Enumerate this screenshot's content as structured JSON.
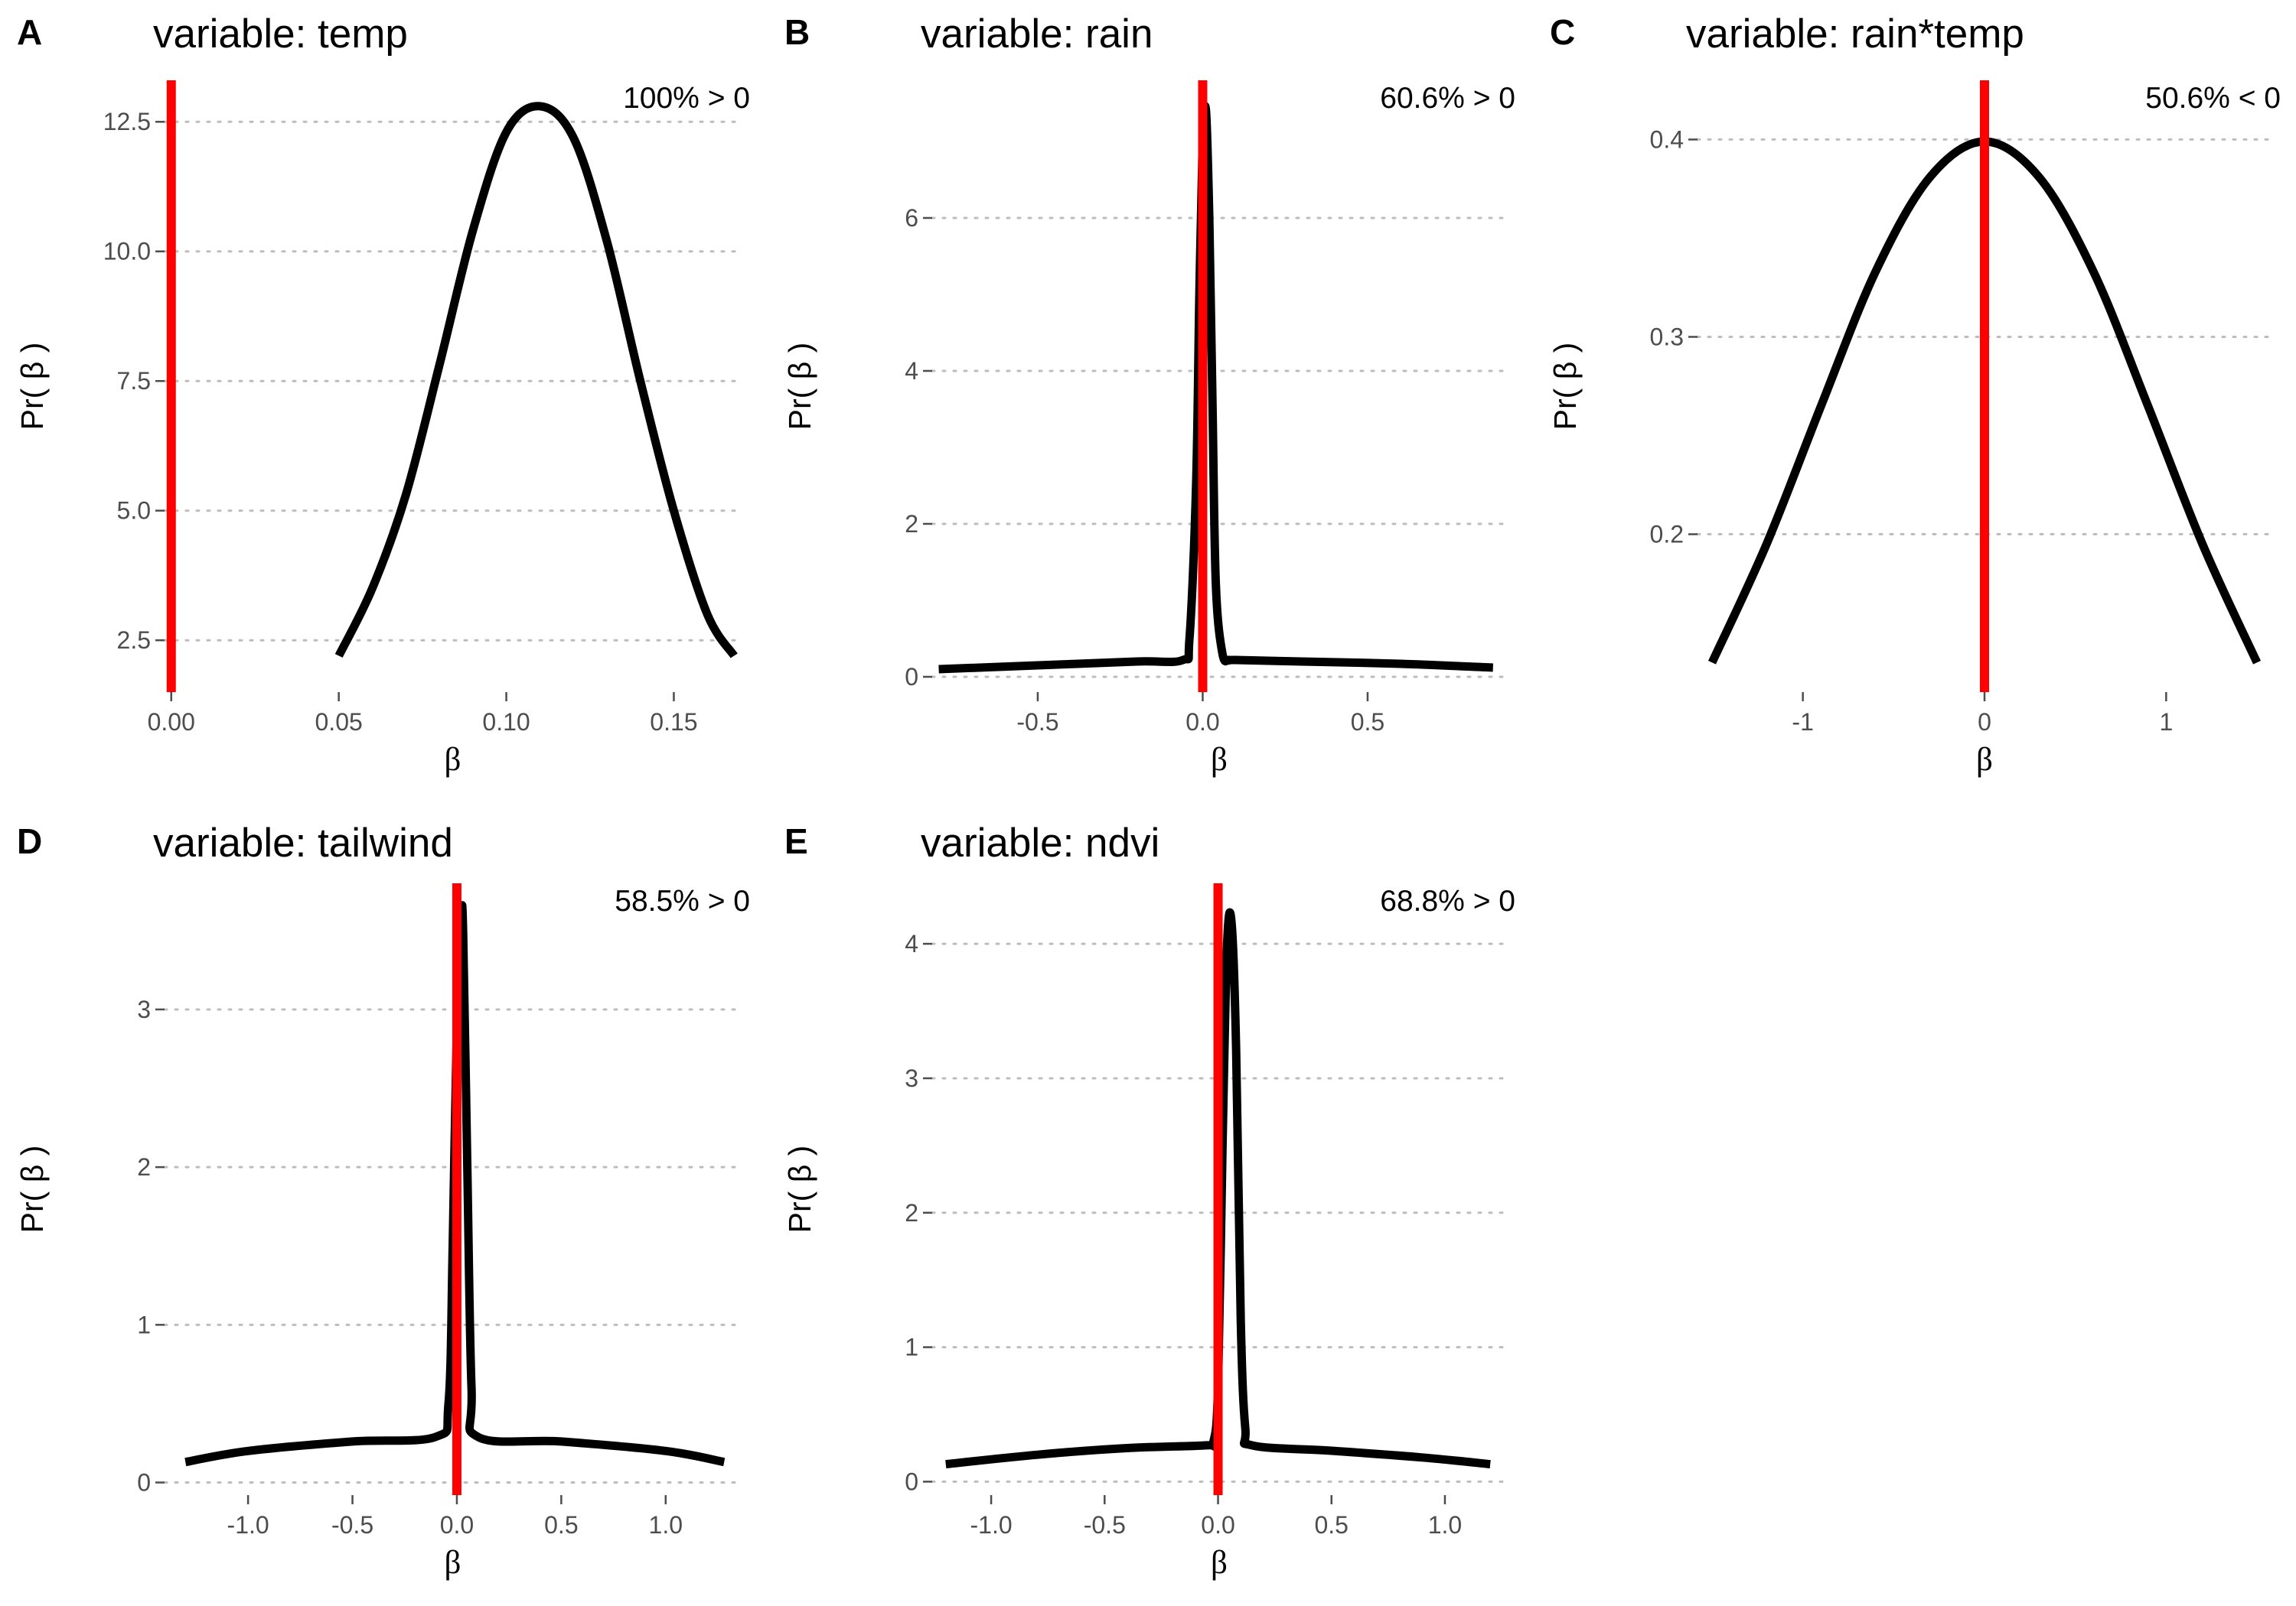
{
  "chart_data": [
    {
      "type": "line",
      "panel_label": "A",
      "title": "variable: temp",
      "annotation": "100% > 0",
      "xlabel": "β",
      "ylabel": "Pr( β )",
      "xlim": [
        -0.002,
        0.17
      ],
      "ylim": [
        1.5,
        13.3
      ],
      "xticks": [
        0.0,
        0.05,
        0.1,
        0.15
      ],
      "xtick_labels": [
        "0.00",
        "0.05",
        "0.10",
        "0.15"
      ],
      "yticks": [
        2.5,
        5.0,
        7.5,
        10.0,
        12.5
      ],
      "ytick_labels": [
        "2.5",
        "5.0",
        "7.5",
        "10.0",
        "12.5"
      ],
      "reference_line_x": 0,
      "series": [
        {
          "x": [
            0.05,
            0.06,
            0.07,
            0.08,
            0.09,
            0.1,
            0.11,
            0.12,
            0.13,
            0.14,
            0.15,
            0.16,
            0.168
          ],
          "y": [
            2.2,
            3.5,
            5.3,
            7.8,
            10.4,
            12.3,
            12.8,
            12.2,
            10.2,
            7.5,
            5.0,
            3.0,
            2.2
          ]
        }
      ]
    },
    {
      "type": "line",
      "panel_label": "B",
      "title": "variable: rain",
      "annotation": "60.6% > 0",
      "xlabel": "β",
      "ylabel": "Pr( β )",
      "xlim": [
        -0.82,
        0.92
      ],
      "ylim": [
        -0.2,
        7.8
      ],
      "xticks": [
        -0.5,
        0.0,
        0.5
      ],
      "xtick_labels": [
        "-0.5",
        "0.0",
        "0.5"
      ],
      "yticks": [
        0,
        2,
        4,
        6
      ],
      "ytick_labels": [
        "0",
        "2",
        "4",
        "6"
      ],
      "reference_line_x": 0,
      "series": [
        {
          "x": [
            -0.8,
            -0.5,
            -0.2,
            -0.06,
            -0.04,
            -0.02,
            -0.01,
            0.0,
            0.01,
            0.02,
            0.03,
            0.04,
            0.06,
            0.08,
            0.1,
            0.3,
            0.6,
            0.88
          ],
          "y": [
            0.1,
            0.15,
            0.2,
            0.22,
            0.5,
            2.5,
            5.0,
            7.0,
            7.4,
            6.0,
            3.5,
            1.2,
            0.3,
            0.22,
            0.22,
            0.2,
            0.17,
            0.12
          ]
        }
      ]
    },
    {
      "type": "line",
      "panel_label": "C",
      "title": "variable: rain*temp",
      "annotation": "50.6% < 0",
      "xlabel": "β",
      "ylabel": "Pr( β )",
      "xlim": [
        -1.58,
        1.58
      ],
      "ylim": [
        0.12,
        0.43
      ],
      "xticks": [
        -1,
        0,
        1
      ],
      "xtick_labels": [
        "-1",
        "0",
        "1"
      ],
      "yticks": [
        0.2,
        0.3,
        0.4
      ],
      "ytick_labels": [
        "0.2",
        "0.3",
        "0.4"
      ],
      "reference_line_x": 0,
      "series": [
        {
          "x": [
            -1.5,
            -1.2,
            -0.9,
            -0.6,
            -0.3,
            0.0,
            0.3,
            0.6,
            0.9,
            1.2,
            1.5
          ],
          "y": [
            0.135,
            0.195,
            0.265,
            0.333,
            0.381,
            0.399,
            0.381,
            0.333,
            0.265,
            0.195,
            0.135
          ]
        }
      ]
    },
    {
      "type": "line",
      "panel_label": "D",
      "title": "variable: tailwind",
      "annotation": "58.5% > 0",
      "xlabel": "β",
      "ylabel": "Pr( β )",
      "xlim": [
        -1.4,
        1.36
      ],
      "ylim": [
        -0.08,
        3.8
      ],
      "xticks": [
        -1.0,
        -0.5,
        0.0,
        0.5,
        1.0
      ],
      "xtick_labels": [
        "-1.0",
        "-0.5",
        "0.0",
        "0.5",
        "1.0"
      ],
      "yticks": [
        0,
        1,
        2,
        3
      ],
      "ytick_labels": [
        "0",
        "1",
        "2",
        "3"
      ],
      "reference_line_x": 0,
      "series": [
        {
          "x": [
            -1.3,
            -1.0,
            -0.5,
            -0.1,
            -0.04,
            -0.02,
            0.0,
            0.02,
            0.03,
            0.05,
            0.07,
            0.1,
            0.5,
            1.0,
            1.28
          ],
          "y": [
            0.13,
            0.2,
            0.26,
            0.29,
            0.5,
            1.5,
            2.9,
            3.55,
            3.5,
            2.0,
            0.6,
            0.29,
            0.26,
            0.2,
            0.13
          ]
        }
      ]
    },
    {
      "type": "line",
      "panel_label": "E",
      "title": "variable: ndvi",
      "annotation": "68.8% > 0",
      "xlabel": "β",
      "ylabel": "Pr( β )",
      "xlim": [
        -1.26,
        1.27
      ],
      "ylim": [
        -0.1,
        4.45
      ],
      "xticks": [
        -1.0,
        -0.5,
        0.0,
        0.5,
        1.0
      ],
      "xtick_labels": [
        "-1.0",
        "-0.5",
        "0.0",
        "0.5",
        "1.0"
      ],
      "yticks": [
        0,
        1,
        2,
        3,
        4
      ],
      "ytick_labels": [
        "0",
        "1",
        "2",
        "3",
        "4"
      ],
      "reference_line_x": 0,
      "series": [
        {
          "x": [
            -1.2,
            -0.8,
            -0.4,
            -0.05,
            -0.02,
            0.0,
            0.02,
            0.04,
            0.06,
            0.08,
            0.1,
            0.12,
            0.15,
            0.5,
            0.9,
            1.2
          ],
          "y": [
            0.13,
            0.2,
            0.25,
            0.27,
            0.3,
            0.7,
            2.5,
            4.0,
            4.15,
            3.2,
            1.2,
            0.4,
            0.27,
            0.23,
            0.18,
            0.13
          ]
        }
      ]
    }
  ]
}
